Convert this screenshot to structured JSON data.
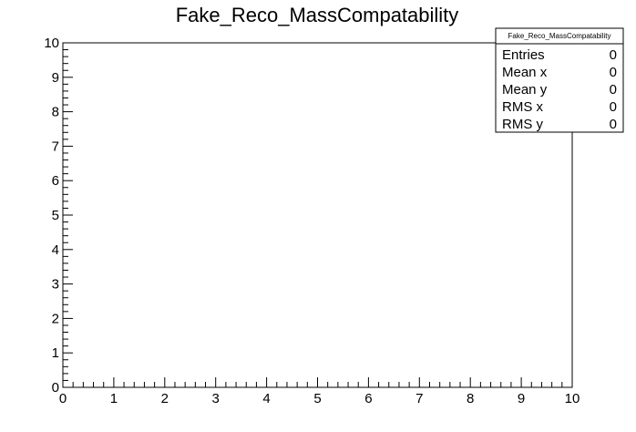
{
  "chart_data": {
    "type": "scatter",
    "title": "Fake_Reco_MassCompatability",
    "xlabel": "",
    "ylabel": "",
    "xlim": [
      0,
      10
    ],
    "ylim": [
      0,
      10
    ],
    "x_ticks": [
      "0",
      "1",
      "2",
      "3",
      "4",
      "5",
      "6",
      "7",
      "8",
      "9",
      "10"
    ],
    "y_ticks": [
      "0",
      "1",
      "2",
      "3",
      "4",
      "5",
      "6",
      "7",
      "8",
      "9",
      "10"
    ],
    "series": [],
    "grid": false,
    "stats_box": {
      "title": "Fake_Reco_MassCompatability",
      "position": "top-right",
      "rows": [
        {
          "label": "Entries",
          "value": "0"
        },
        {
          "label": "Mean x",
          "value": "0"
        },
        {
          "label": "Mean y",
          "value": "0"
        },
        {
          "label": "RMS x",
          "value": "0"
        },
        {
          "label": "RMS y",
          "value": "0"
        }
      ]
    }
  }
}
